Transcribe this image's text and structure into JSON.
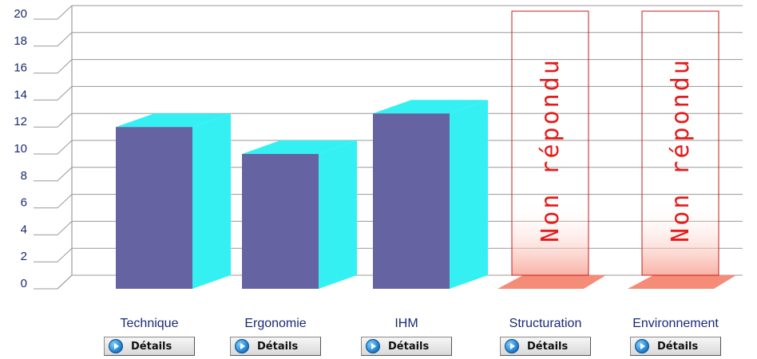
{
  "chart_data": {
    "type": "bar",
    "categories": [
      "Technique",
      "Ergonomie",
      "IHM",
      "Structuration",
      "Environnement"
    ],
    "values": [
      12,
      10,
      13,
      null,
      null
    ],
    "bar_status": [
      "answered",
      "answered",
      "answered",
      "Non répondu",
      "Non répondu"
    ],
    "ylim": [
      0,
      20
    ],
    "yticks": [
      "0",
      "2",
      "4",
      "6",
      "8",
      "10",
      "12",
      "14",
      "16",
      "18",
      "20"
    ],
    "grid": true,
    "colors": {
      "bar_front": "#6563a1",
      "bar_side": "#34f0f2",
      "non_repondu_border": "#cc1a1a",
      "non_repondu_text": "#e31b1b",
      "floor": "#f48c78"
    }
  },
  "buttons": {
    "details_label": "Détails",
    "icon": "play-circle-icon"
  }
}
